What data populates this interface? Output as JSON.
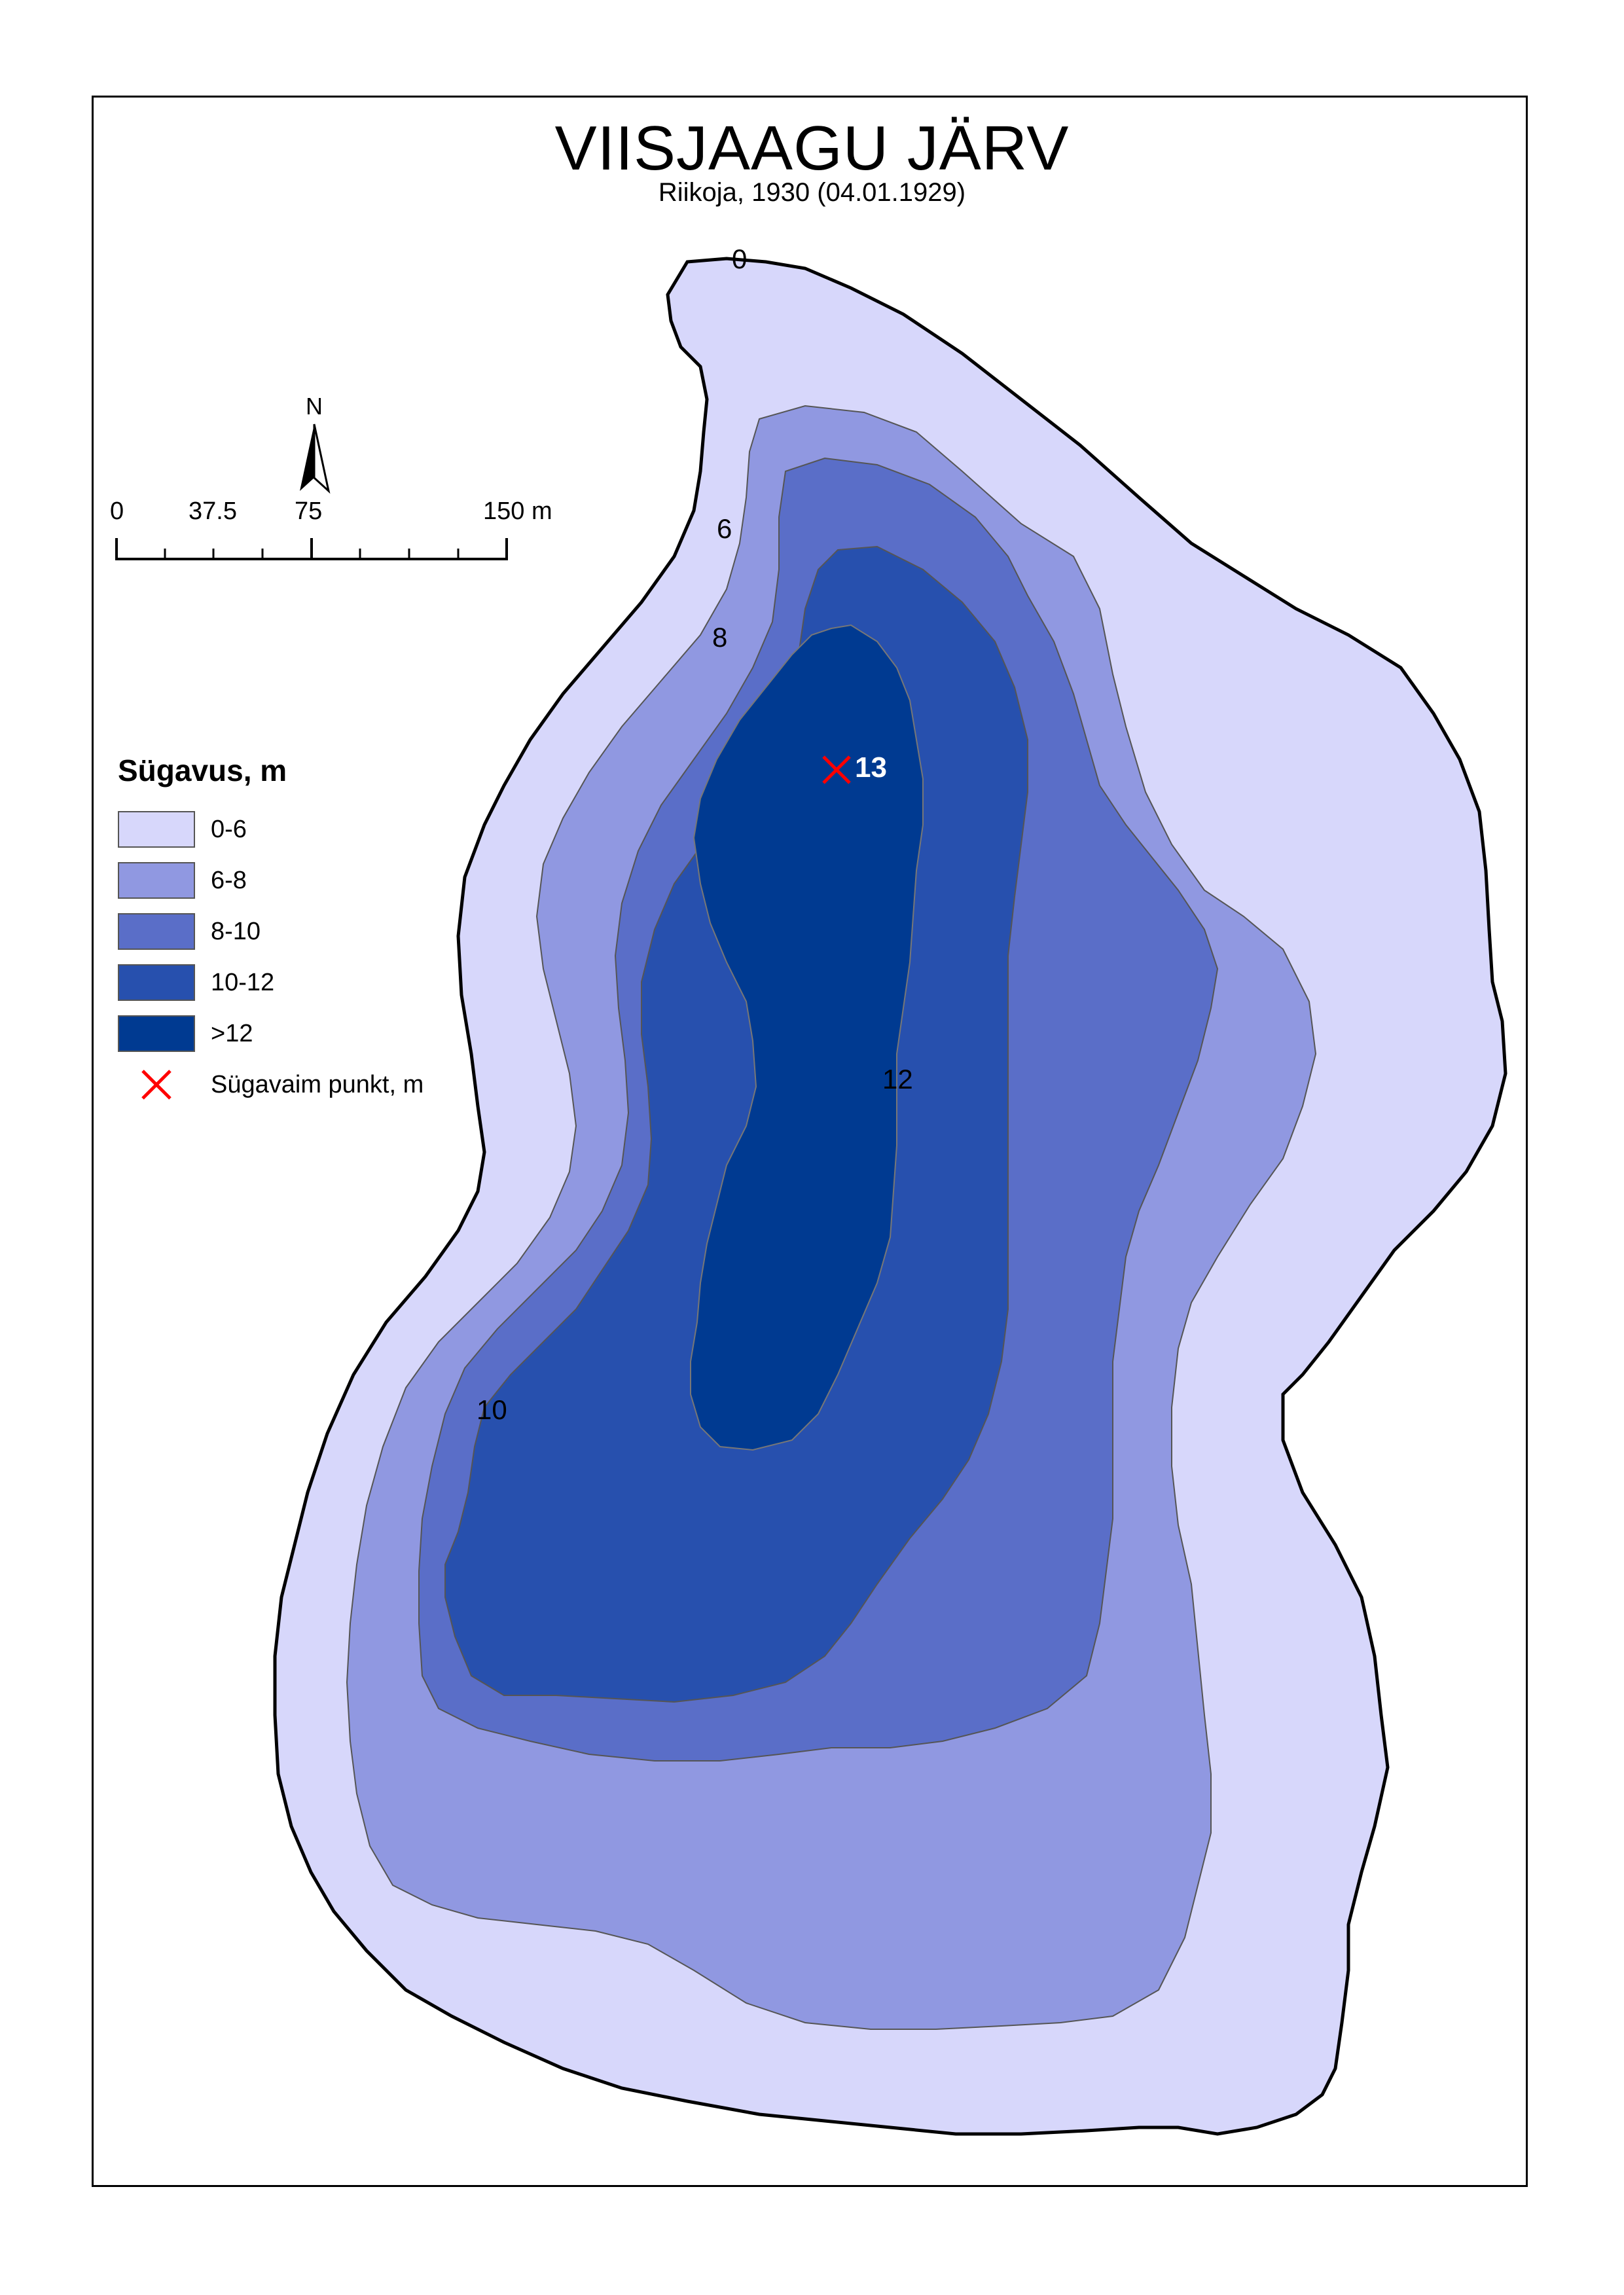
{
  "map": {
    "title": "VIISJAAGU JÄRV",
    "subtitle": "Riikoja, 1930 (04.01.1929)",
    "north_label": "N",
    "scale": {
      "ticks": [
        "0",
        "37.5",
        "75",
        "150 m"
      ]
    },
    "legend": {
      "title": "Sügavus, m",
      "items": [
        {
          "label": "0-6",
          "color": "#d7d7fb"
        },
        {
          "label": "6-8",
          "color": "#9098e1"
        },
        {
          "label": "8-10",
          "color": "#5a6ec8"
        },
        {
          "label": "10-12",
          "color": "#2750ae"
        },
        {
          "label": ">12",
          "color": "#003a91"
        }
      ],
      "deepest_point_label": "Sügavaim punkt, m",
      "deepest_point_color": "#ff0000"
    },
    "contour_labels": [
      "0",
      "6",
      "8",
      "10",
      "12"
    ],
    "deepest_value": "13"
  }
}
